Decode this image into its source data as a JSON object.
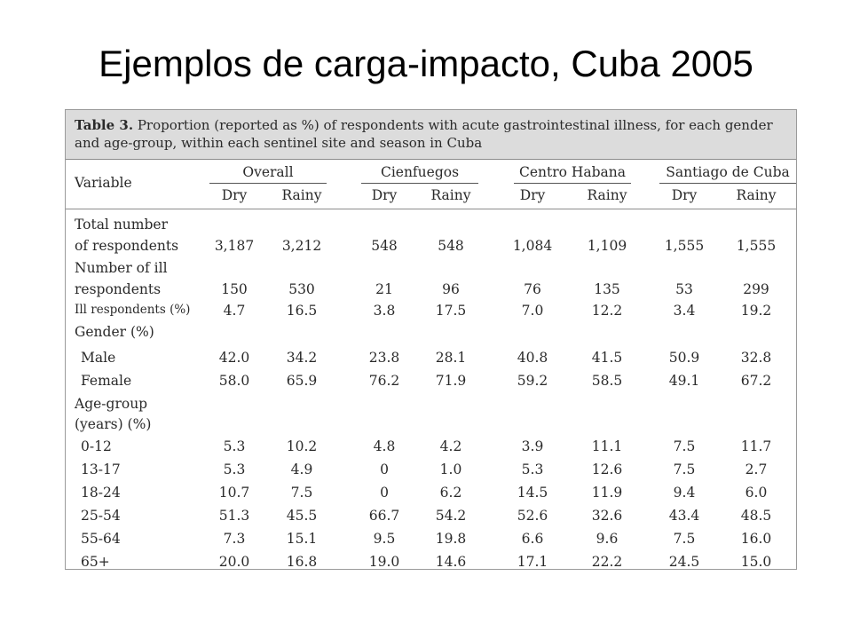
{
  "slide_title": "Ejemplos de carga-impacto, Cuba 2005",
  "table": {
    "caption_label": "Table 3.",
    "caption_line1": " Proportion (reported as %) of respondents with acute gastrointestinal illness, for each gender",
    "caption_line2": "and age-group, within each sentinel site and season in Cuba",
    "variable_header": "Variable",
    "groups": [
      {
        "name": "Overall",
        "dry": "Dry",
        "rainy": "Rainy"
      },
      {
        "name": "Cienfuegos",
        "dry": "Dry",
        "rainy": "Rainy"
      },
      {
        "name": "Centro Habana",
        "dry": "Dry",
        "rainy": "Rainy"
      },
      {
        "name": "Santiago de Cuba",
        "dry": "Dry",
        "rainy": "Rainy"
      }
    ],
    "rows": [
      {
        "label1": "Total number",
        "label2": "of respondents",
        "values": [
          "3,187",
          "3,212",
          "548",
          "548",
          "1,084",
          "1,109",
          "1,555",
          "1,555"
        ]
      },
      {
        "label1": "Number of ill",
        "label2": "respondents",
        "values": [
          "150",
          "530",
          "21",
          "96",
          "76",
          "135",
          "53",
          "299"
        ]
      },
      {
        "label": "Ill respondents (%)",
        "values": [
          "4.7",
          "16.5",
          "3.8",
          "17.5",
          "7.0",
          "12.2",
          "3.4",
          "19.2"
        ]
      },
      {
        "label": "Gender (%)"
      },
      {
        "label": "Male",
        "values": [
          "42.0",
          "34.2",
          "23.8",
          "28.1",
          "40.8",
          "41.5",
          "50.9",
          "32.8"
        ]
      },
      {
        "label": "Female",
        "values": [
          "58.0",
          "65.9",
          "76.2",
          "71.9",
          "59.2",
          "58.5",
          "49.1",
          "67.2"
        ]
      },
      {
        "label1": "Age-group",
        "label2": "(years) (%)"
      },
      {
        "label": "0-12",
        "values": [
          "5.3",
          "10.2",
          "4.8",
          "4.2",
          "3.9",
          "11.1",
          "7.5",
          "11.7"
        ]
      },
      {
        "label": "13-17",
        "values": [
          "5.3",
          "4.9",
          "0",
          "1.0",
          "5.3",
          "12.6",
          "7.5",
          "2.7"
        ]
      },
      {
        "label": "18-24",
        "values": [
          "10.7",
          "7.5",
          "0",
          "6.2",
          "14.5",
          "11.9",
          "9.4",
          "6.0"
        ]
      },
      {
        "label": "25-54",
        "values": [
          "51.3",
          "45.5",
          "66.7",
          "54.2",
          "52.6",
          "32.6",
          "43.4",
          "48.5"
        ]
      },
      {
        "label": "55-64",
        "values": [
          "7.3",
          "15.1",
          "9.5",
          "19.8",
          "6.6",
          "9.6",
          "7.5",
          "16.0"
        ]
      },
      {
        "label": "65+",
        "values": [
          "20.0",
          "16.8",
          "19.0",
          "14.6",
          "17.1",
          "22.2",
          "24.5",
          "15.0"
        ]
      }
    ]
  }
}
